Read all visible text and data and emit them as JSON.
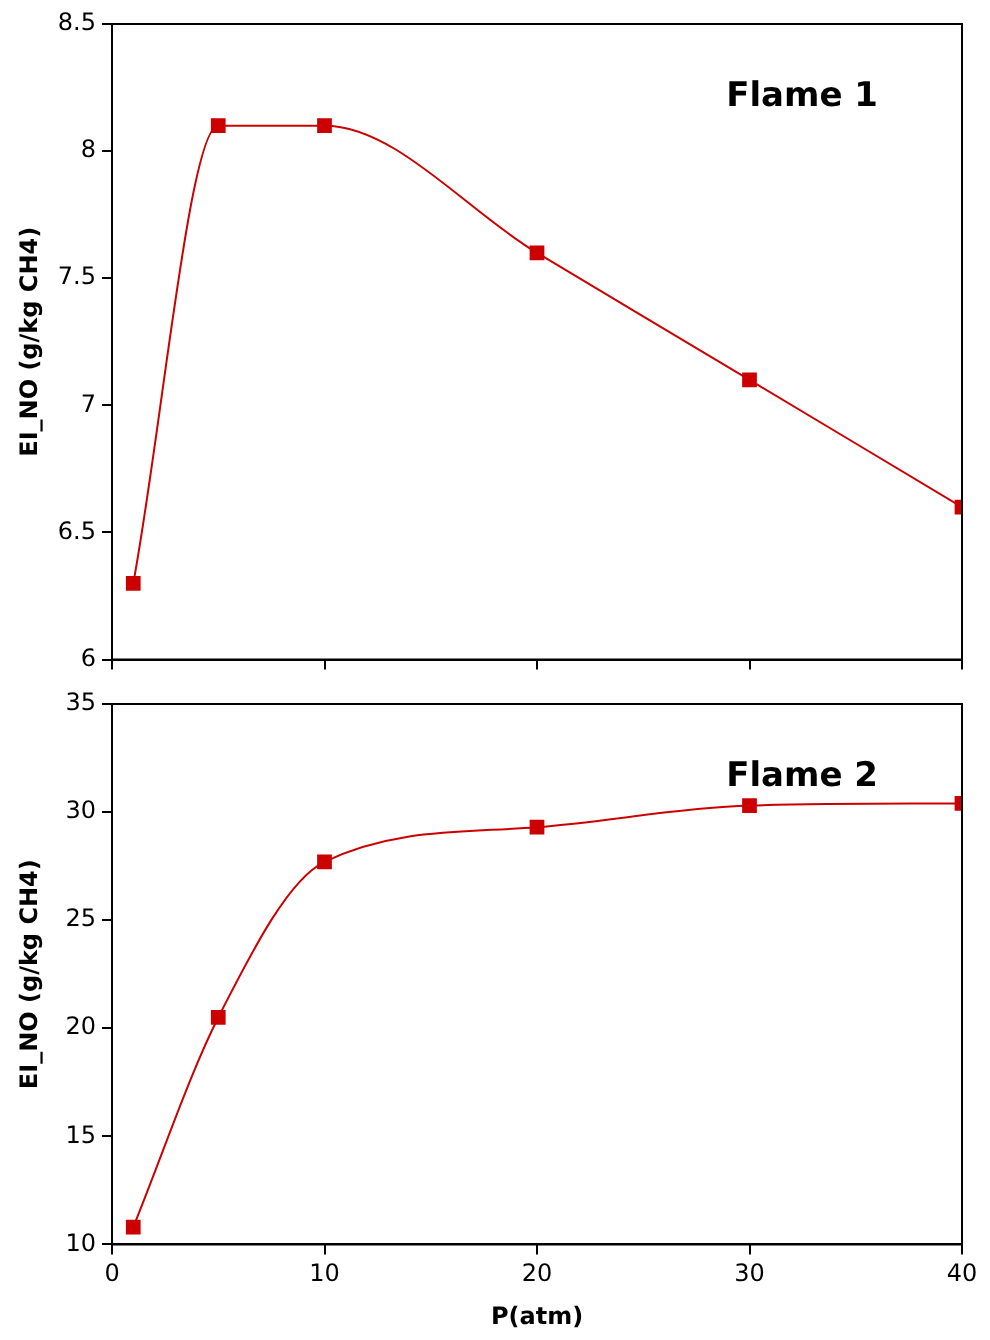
{
  "chart_data": [
    {
      "type": "line",
      "x": [
        1,
        5,
        10,
        20,
        30,
        40
      ],
      "xlim": [
        0,
        40
      ],
      "xticks": [
        0,
        10,
        20,
        30,
        40
      ],
      "ylim": [
        6,
        8.5
      ],
      "yticks": [
        6,
        6.5,
        7,
        7.5,
        8,
        8.5
      ],
      "ylabel": "EI_NO (g/kg CH4)",
      "tick_labels": "y",
      "marker": "square",
      "grid": false,
      "legend": false,
      "annotations": [
        "Flame 1"
      ],
      "series": [
        {
          "color": "#cc0000",
          "values": [
            6.3,
            8.1,
            8.1,
            7.6,
            7.1,
            6.6
          ]
        }
      ]
    },
    {
      "type": "line",
      "x": [
        1,
        5,
        10,
        20,
        30,
        40
      ],
      "xlim": [
        0,
        40
      ],
      "xticks": [
        0,
        10,
        20,
        30,
        40
      ],
      "ylim": [
        10,
        35
      ],
      "yticks": [
        10,
        15,
        20,
        25,
        30,
        35
      ],
      "xlabel": "P(atm)",
      "ylabel": "EI_NO (g/kg CH4)",
      "marker": "square",
      "grid": false,
      "legend": false,
      "annotations": [
        "Flame 2"
      ],
      "series": [
        {
          "color": "#cc0000",
          "values": [
            10.8,
            20.5,
            27.7,
            29.3,
            30.3,
            30.4
          ]
        }
      ]
    }
  ]
}
